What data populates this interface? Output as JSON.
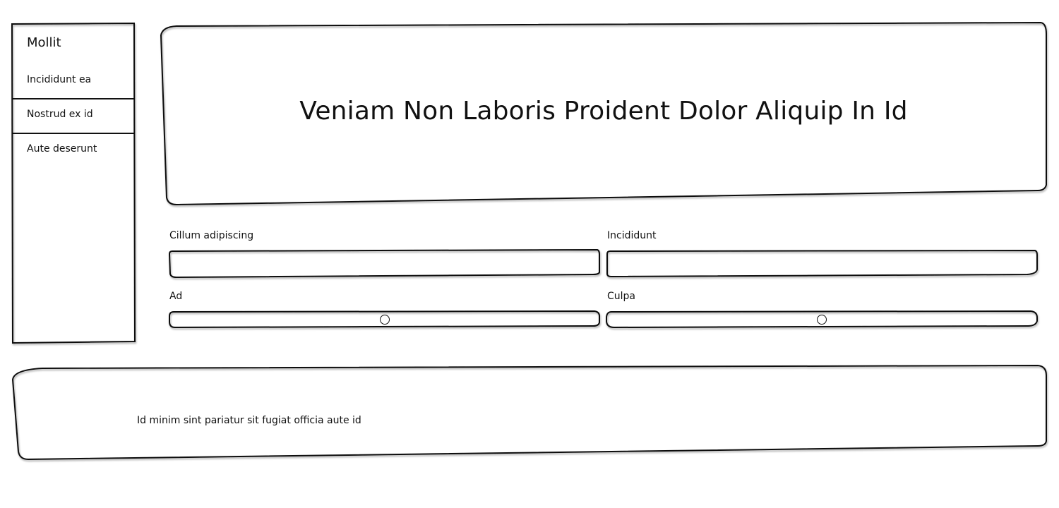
{
  "sidebar": {
    "title": "Mollit",
    "items": [
      {
        "label": "Incididunt ea"
      },
      {
        "label": "Nostrud ex id"
      },
      {
        "label": "Aute deserunt"
      }
    ]
  },
  "hero": {
    "title": "Veniam Non Laboris Proident Dolor Aliquip In Id"
  },
  "form": {
    "field1": {
      "label": "Cillum adipiscing",
      "value": ""
    },
    "field2": {
      "label": "Incididunt",
      "value": ""
    },
    "slider1": {
      "label": "Ad",
      "value": 0.5
    },
    "slider2": {
      "label": "Culpa",
      "value": 0.5
    }
  },
  "footer": {
    "text": "Id minim sint pariatur sit fugiat officia aute id"
  }
}
